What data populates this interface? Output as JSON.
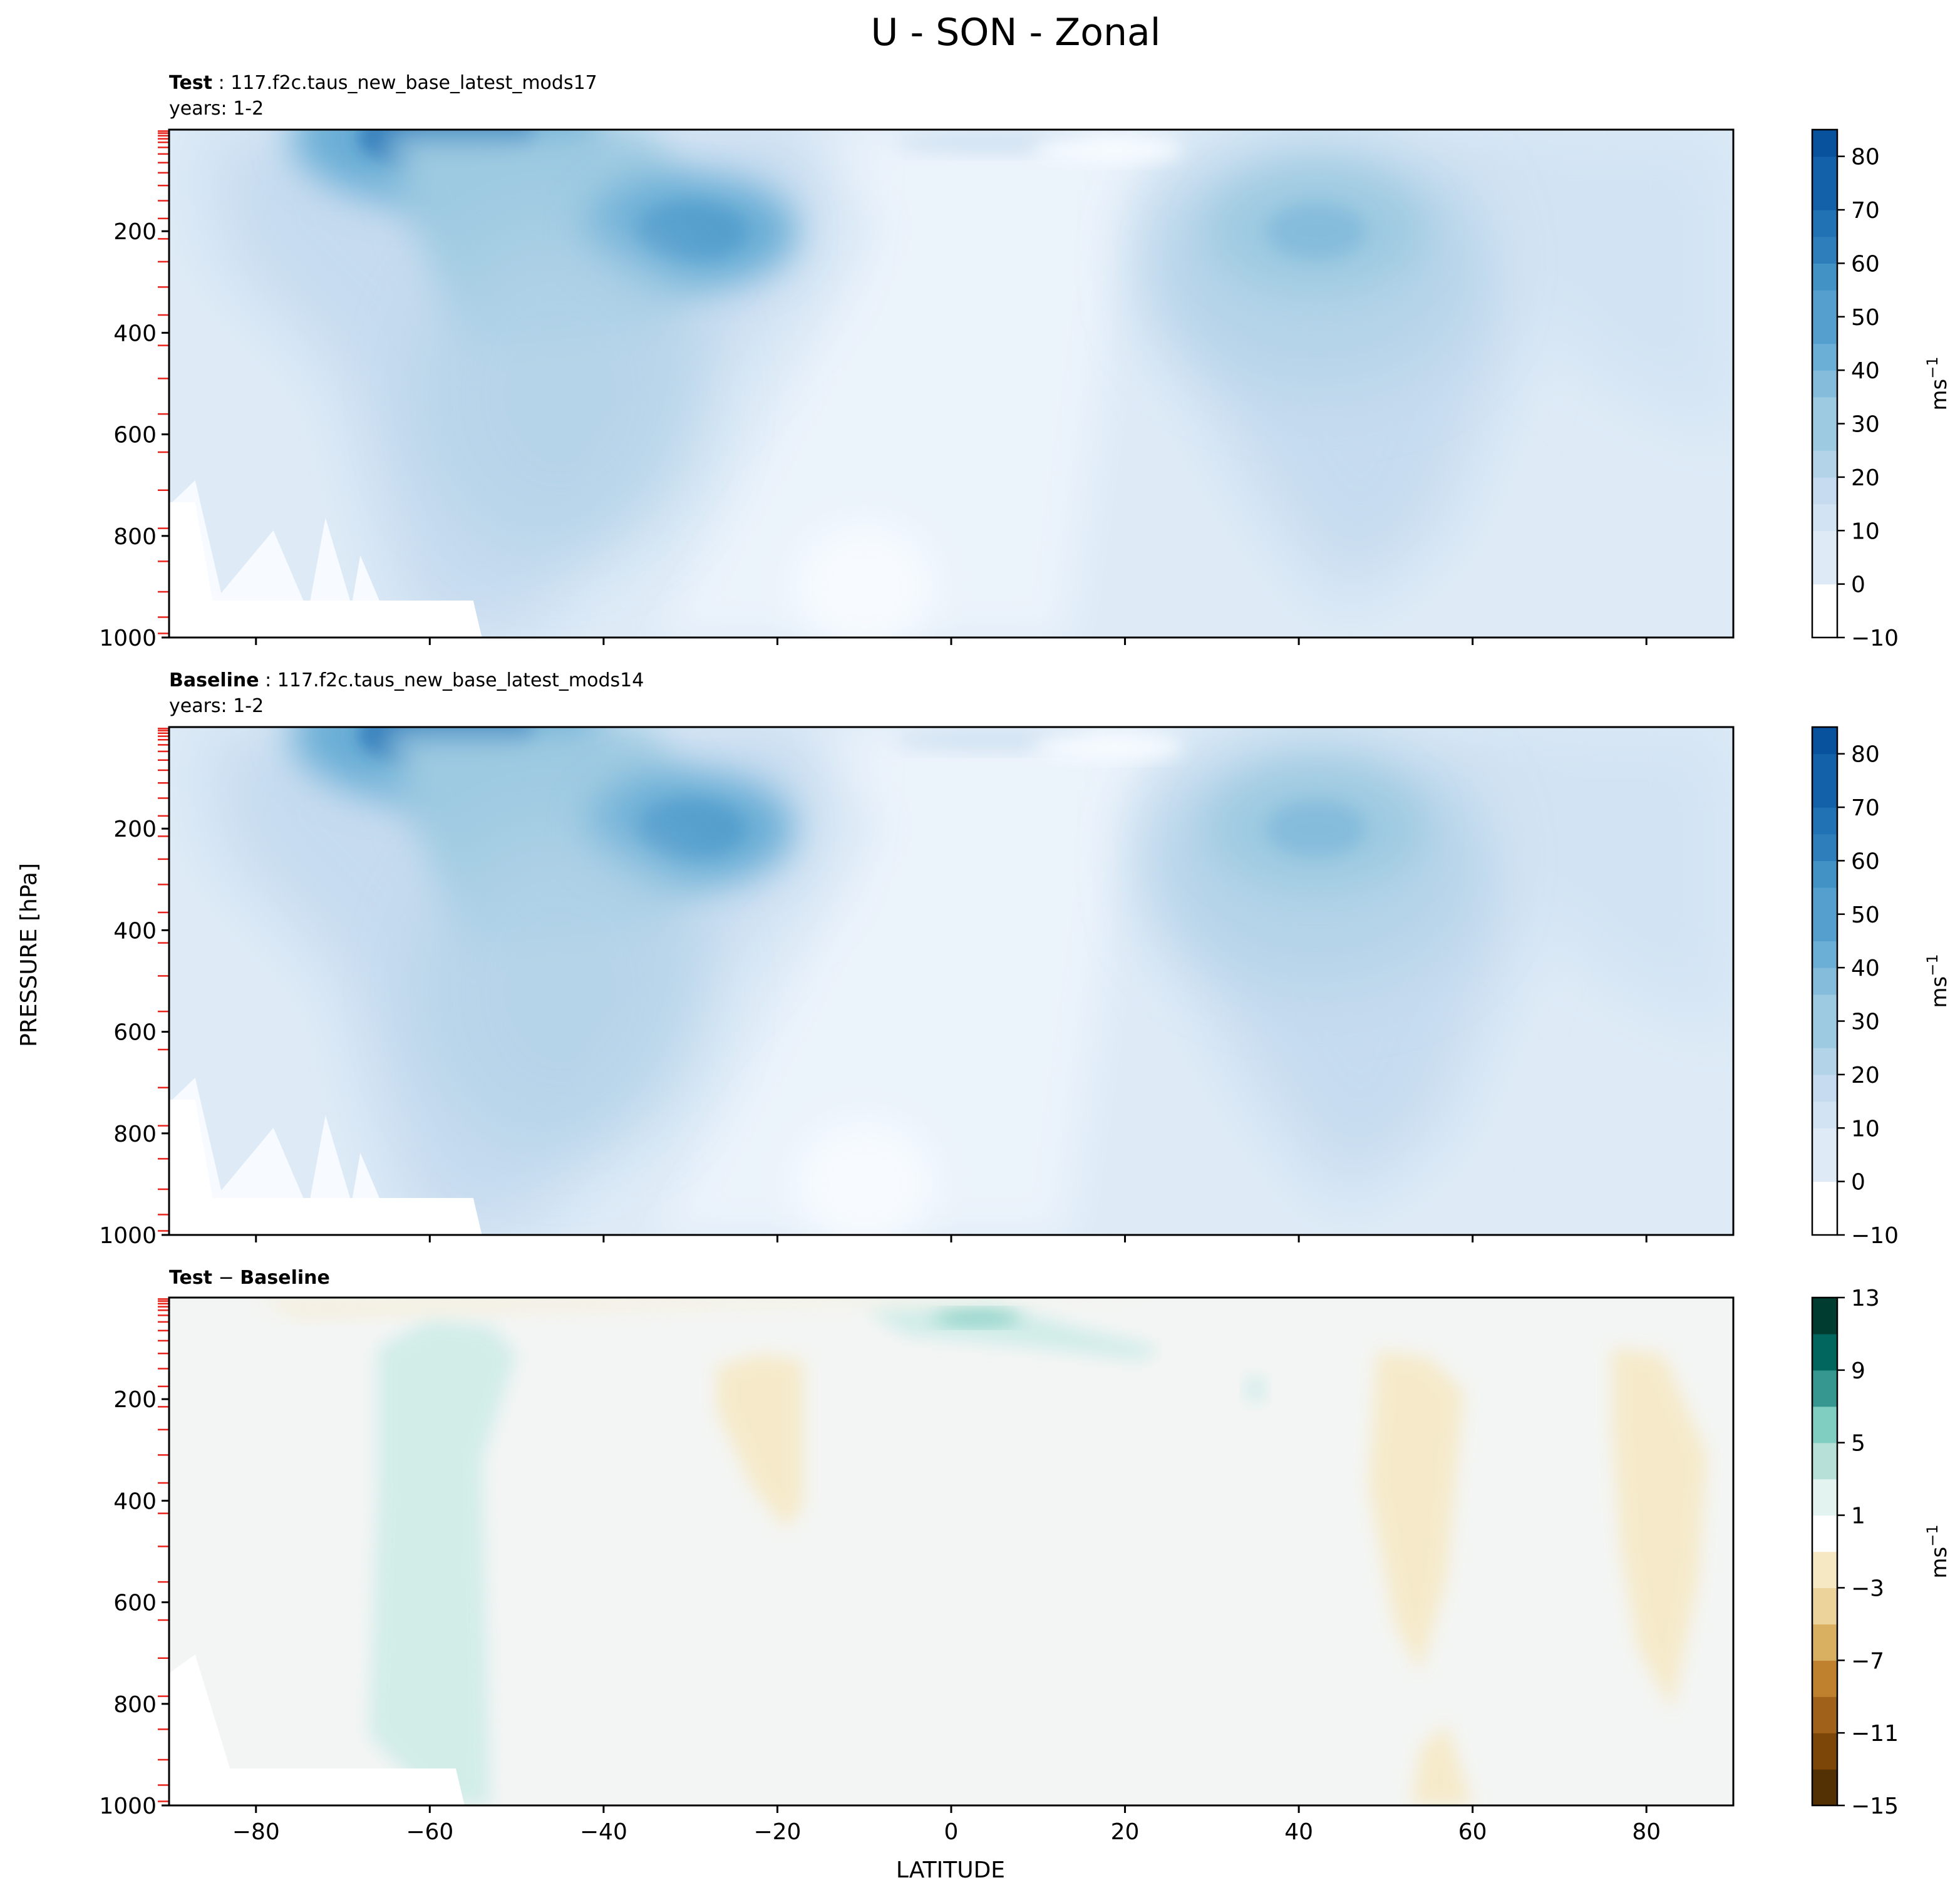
{
  "chart_data": {
    "type": "heatmap",
    "suptitle": "U - SON - Zonal",
    "ylabel": "PRESSURE [hPa]",
    "xlabel": "LATITUDE",
    "x_ticks": [
      -80,
      -60,
      -40,
      -20,
      0,
      20,
      40,
      60,
      80
    ],
    "y_ticks": [
      200,
      400,
      600,
      800,
      1000
    ],
    "xlim": [
      -90,
      90
    ],
    "ylim": [
      1000,
      0
    ],
    "colors": {
      "blues": [
        "#f7fbff",
        "#ebf3fb",
        "#deebf7",
        "#d2e3f3",
        "#c6dbef",
        "#b3d3e8",
        "#9ecae1",
        "#85bcdc",
        "#6baed6",
        "#549fcd",
        "#4292c6",
        "#2f7ebc",
        "#2171b5",
        "#1361a9",
        "#08519c",
        "#08306b"
      ],
      "diff": [
        "#543005",
        "#8c510a",
        "#bf812d",
        "#dfc27d",
        "#f6e8c3",
        "#ffffff",
        "#c7eae5",
        "#80cdc1",
        "#35978f",
        "#01665e",
        "#003c30"
      ],
      "diff_background": "#f3f5f4"
    },
    "panels": [
      {
        "title_bold": "Test",
        "title_sep": " : ",
        "title": "117.f2c.taus_new_base_latest_mods17",
        "subtitle": "years: 1-2",
        "colorbar_label": "ms",
        "colorbar_exponent": "−1",
        "colorbar_ticks": [
          "80",
          "70",
          "60",
          "50",
          "40",
          "30",
          "20",
          "10",
          "0",
          "−10"
        ],
        "colorbar_values": [
          80,
          70,
          60,
          50,
          40,
          30,
          20,
          10,
          0,
          -10
        ],
        "colorbar_range": [
          -10,
          85
        ],
        "features": [
          {
            "kind": "jet",
            "lat": -58,
            "p": 30,
            "max": 52
          },
          {
            "kind": "jet",
            "lat": -30,
            "p": 200,
            "max": 36
          },
          {
            "kind": "jet",
            "lat": 42,
            "p": 200,
            "max": 28
          }
        ]
      },
      {
        "title_bold": "Baseline",
        "title_sep": " : ",
        "title": "117.f2c.taus_new_base_latest_mods14",
        "subtitle": "years: 1-2",
        "colorbar_label": "ms",
        "colorbar_exponent": "−1",
        "colorbar_ticks": [
          "80",
          "70",
          "60",
          "50",
          "40",
          "30",
          "20",
          "10",
          "0",
          "−10"
        ],
        "colorbar_values": [
          80,
          70,
          60,
          50,
          40,
          30,
          20,
          10,
          0,
          -10
        ],
        "colorbar_range": [
          -10,
          85
        ],
        "features": [
          {
            "kind": "jet",
            "lat": -58,
            "p": 30,
            "max": 50
          },
          {
            "kind": "jet",
            "lat": -30,
            "p": 200,
            "max": 35
          },
          {
            "kind": "jet",
            "lat": 42,
            "p": 200,
            "max": 27
          }
        ]
      },
      {
        "title_bold": "Test",
        "title_sep": " − ",
        "title_bold2": "Baseline",
        "colorbar_label": "ms",
        "colorbar_exponent": "−1",
        "colorbar_ticks": [
          "13",
          "9",
          "5",
          "1",
          "−3",
          "−7",
          "−11",
          "−15"
        ],
        "colorbar_values": [
          13,
          9,
          5,
          1,
          -3,
          -7,
          -11,
          -15
        ],
        "colorbar_range": [
          -15,
          13
        ],
        "features": [
          {
            "kind": "positive",
            "lat": -57,
            "p_top": 50,
            "p_bottom": 1000,
            "value": 2
          },
          {
            "kind": "positive",
            "lat": 3,
            "p": 40,
            "value": 4
          },
          {
            "kind": "negative",
            "lat": -23,
            "p": 250,
            "value": -2
          },
          {
            "kind": "negative",
            "lat": 52,
            "p": 350,
            "value": -2
          },
          {
            "kind": "negative",
            "lat": 84,
            "p": 300,
            "value": -2
          }
        ]
      }
    ]
  }
}
